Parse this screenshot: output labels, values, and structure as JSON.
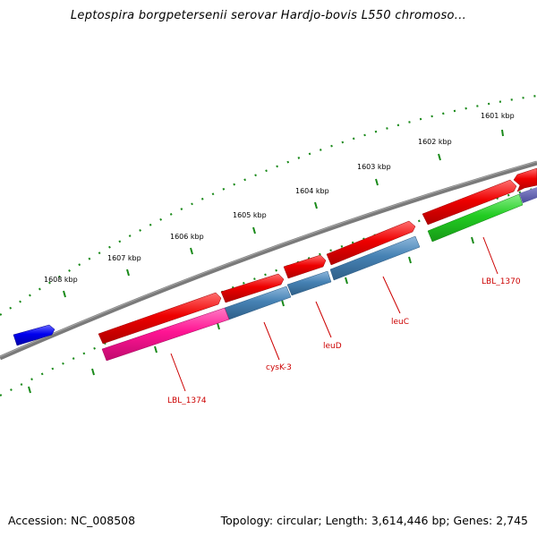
{
  "title": "Leptospira borgpetersenii serovar Hardjo-bovis L550 chromoso...",
  "footer": {
    "accession": "Accession: NC_008508",
    "summary": "Topology: circular; Length: 3,614,446 bp; Genes: 2,745"
  },
  "ruler": {
    "labels": [
      "1601 kbp",
      "1602 kbp",
      "1603 kbp",
      "1604 kbp",
      "1605 kbp",
      "1606 kbp",
      "1607 kbp",
      "1608 kbp"
    ],
    "tick_color": "#1a8a1a"
  },
  "genes": {
    "labels": [
      "LBL_1370",
      "leuC",
      "leuD",
      "cysK-3",
      "LBL_1374"
    ],
    "colors": {
      "red": "#ee0000",
      "steel": "#4682b4",
      "pink": "#ff1493",
      "green": "#22cc22",
      "blue": "#0000ee",
      "backbone": "#777777",
      "label": "#cc0000"
    }
  }
}
